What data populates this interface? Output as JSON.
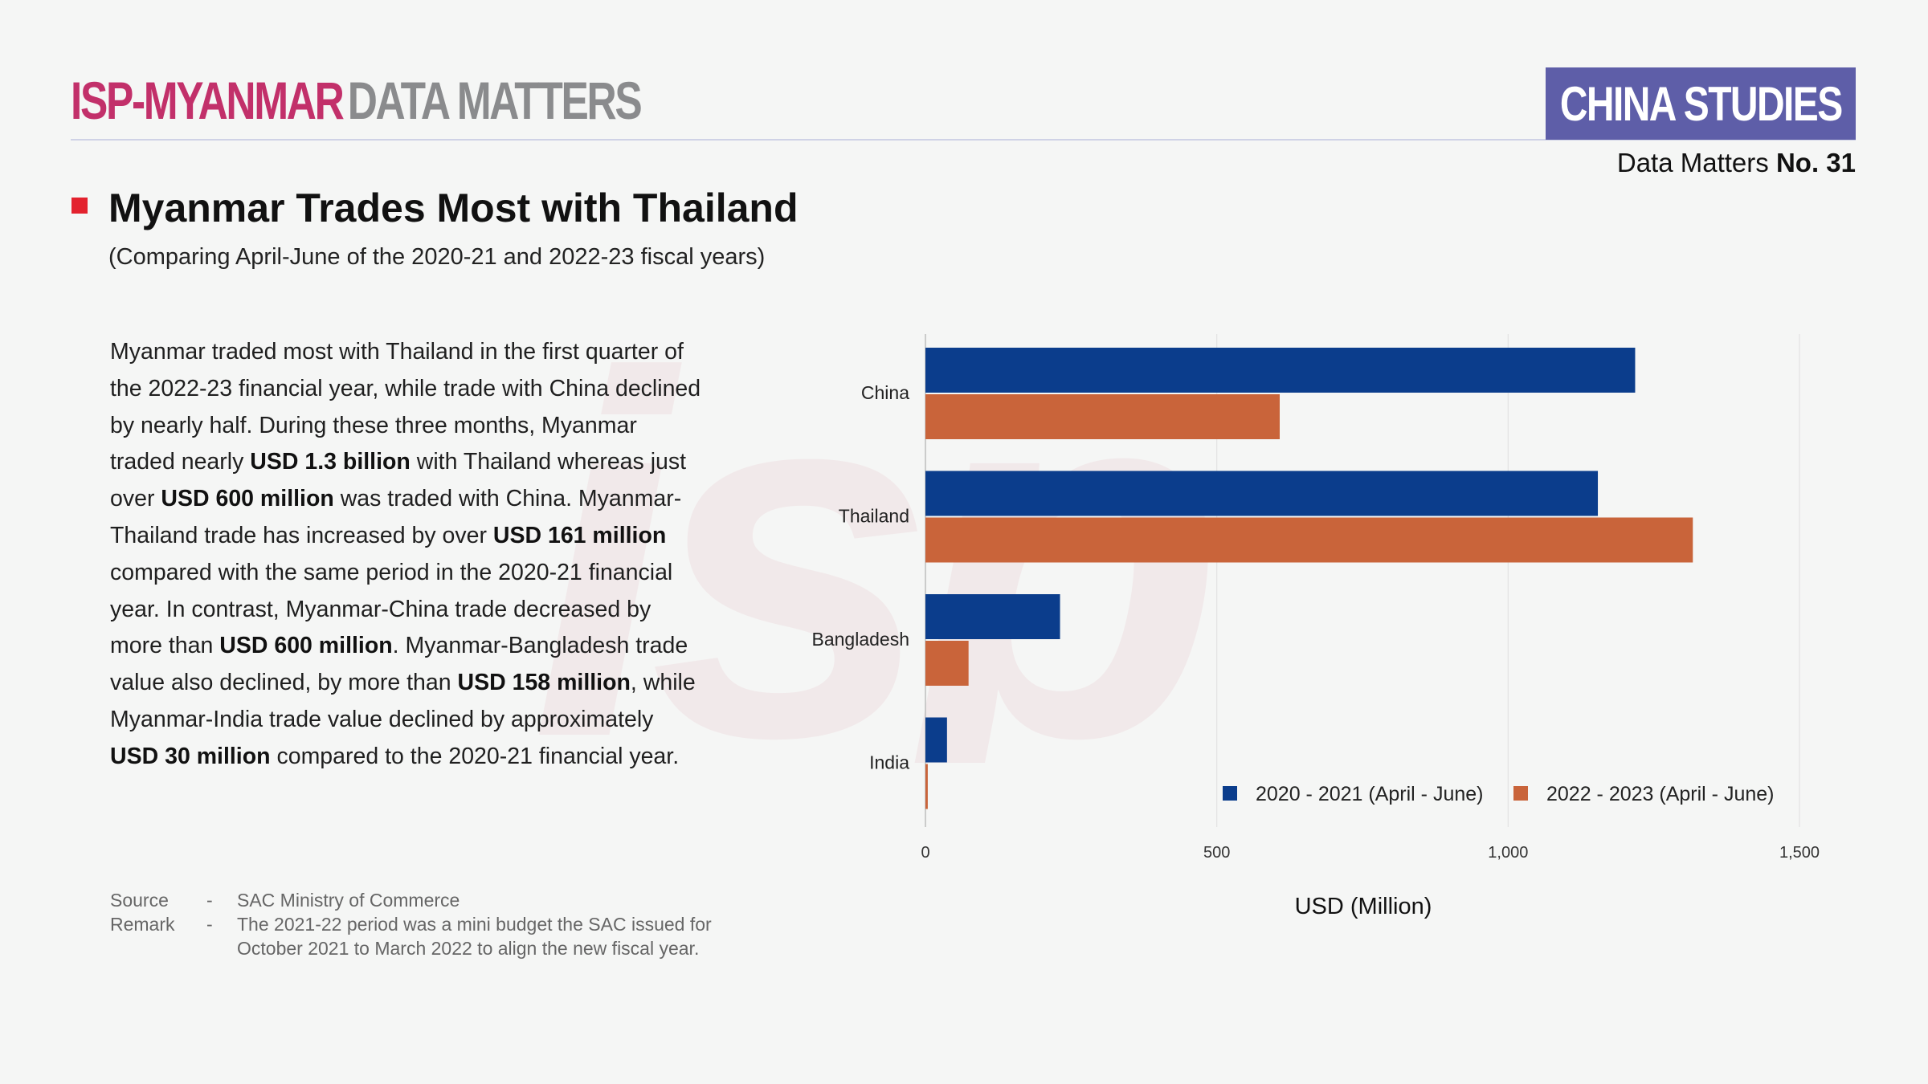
{
  "header": {
    "brand_primary": "ISP-MYANMAR",
    "brand_secondary": "DATA MATTERS",
    "section_badge": "CHINA STUDIES",
    "issue_label": "Data Matters",
    "issue_number": "No. 31"
  },
  "title": "Myanmar Trades Most with Thailand",
  "subtitle": "(Comparing April-June of the 2020-21 and 2022-23 fiscal years)",
  "body": [
    [
      {
        "text": "Myanmar traded most with Thailand in the first quarter of the 2022-23 financial year, while trade with China declined by nearly half. During these three months, Myanmar traded nearly ",
        "bold": false
      },
      {
        "text": "USD 1.3 billion",
        "bold": true
      },
      {
        "text": " with Thailand whereas just over ",
        "bold": false
      },
      {
        "text": "USD 600 million",
        "bold": true
      },
      {
        "text": " was traded with China. Myanmar-Thailand trade has increased by over ",
        "bold": false
      },
      {
        "text": "USD 161 million",
        "bold": true
      },
      {
        "text": "  compared with the same period in the 2020-21 financial year. In contrast, Myanmar-China trade decreased by more than ",
        "bold": false
      },
      {
        "text": "USD 600 million",
        "bold": true
      },
      {
        "text": ". Myanmar-Bangladesh trade value also declined, by more than ",
        "bold": false
      },
      {
        "text": "USD 158 million",
        "bold": true
      },
      {
        "text": ", while Myanmar-India trade value declined by approximately ",
        "bold": false
      },
      {
        "text": "USD 30 million",
        "bold": true
      },
      {
        "text": " compared to the 2020-21 financial year.",
        "bold": false
      }
    ]
  ],
  "notes": {
    "source_label": "Source",
    "source_value": "SAC Ministry of Commerce",
    "remark_label": "Remark",
    "remark_value": "The 2021-22 period was a mini budget the SAC issued for October 2021 to March 2022 to align the new fiscal year.",
    "separator": "-"
  },
  "colors": {
    "series_2020": "#0b3d8c",
    "series_2022": "#c9643a",
    "accent": "#e3222e",
    "badge": "#5e5ea8",
    "brand": "#c2306a",
    "watermark": "#c0304f"
  },
  "watermark_text": "isp",
  "chart_data": {
    "type": "bar",
    "orientation": "horizontal",
    "categories": [
      "China",
      "Thailand",
      "Bangladesh",
      "India"
    ],
    "series": [
      {
        "name": "2020 - 2021 (April - June)",
        "values": [
          1218,
          1154,
          231,
          37
        ]
      },
      {
        "name": "2022 - 2023 (April - June)",
        "values": [
          608,
          1317,
          74,
          4
        ]
      }
    ],
    "xlim": [
      0,
      1500
    ],
    "xticks": [
      0,
      500,
      1000,
      1500
    ],
    "xtick_labels": [
      "0",
      "500",
      "1,000",
      "1,500"
    ],
    "xlabel": "USD (Million)",
    "ylabel": "",
    "grid": true,
    "legend_position": "bottom-right"
  }
}
